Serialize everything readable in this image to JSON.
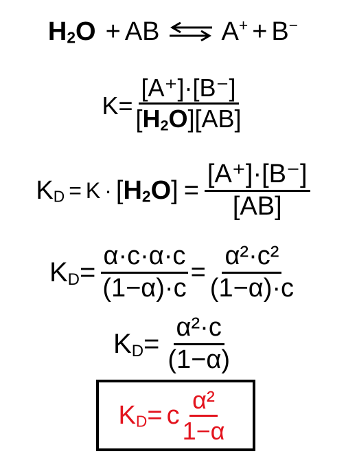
{
  "eq1": {
    "lhs_h": "H",
    "lhs_2": "2",
    "lhs_o": "O",
    "plus1": "+",
    "reactant": "AB",
    "cation": "A",
    "cation_charge": "+",
    "plus2": "+",
    "anion": "B",
    "anion_charge": "−"
  },
  "eq2": {
    "lhs": "K=",
    "num": "[A⁺]·[B⁻]",
    "den_open": "[",
    "den_h": "H",
    "den_2": "2",
    "den_o": "O",
    "den_rest": "][AB]"
  },
  "eq3": {
    "k": "K",
    "d": "D",
    "eq": "=",
    "k2": "K",
    "dot": "·",
    "br_open": "[",
    "h": "H",
    "two": "2",
    "o": "O",
    "br_close": "]",
    "eq2": "=",
    "num": "[A⁺]·[B⁻]",
    "den": "[AB]"
  },
  "eq4": {
    "k": "K",
    "d": "D",
    "eq": "=",
    "num1": "α·c·α·c",
    "den1": "(1−α)·c",
    "eq2": "=",
    "num2": "α²·c²",
    "den2": "(1−α)·c"
  },
  "eq5": {
    "k": "K",
    "d": "D",
    "eq": "=",
    "num": "α²·c",
    "den": "(1−α)"
  },
  "eq6": {
    "k": "K",
    "d": "D",
    "eq": "=",
    "c": "c",
    "num": "α²",
    "den": "1−α",
    "color": "#e3141e"
  }
}
